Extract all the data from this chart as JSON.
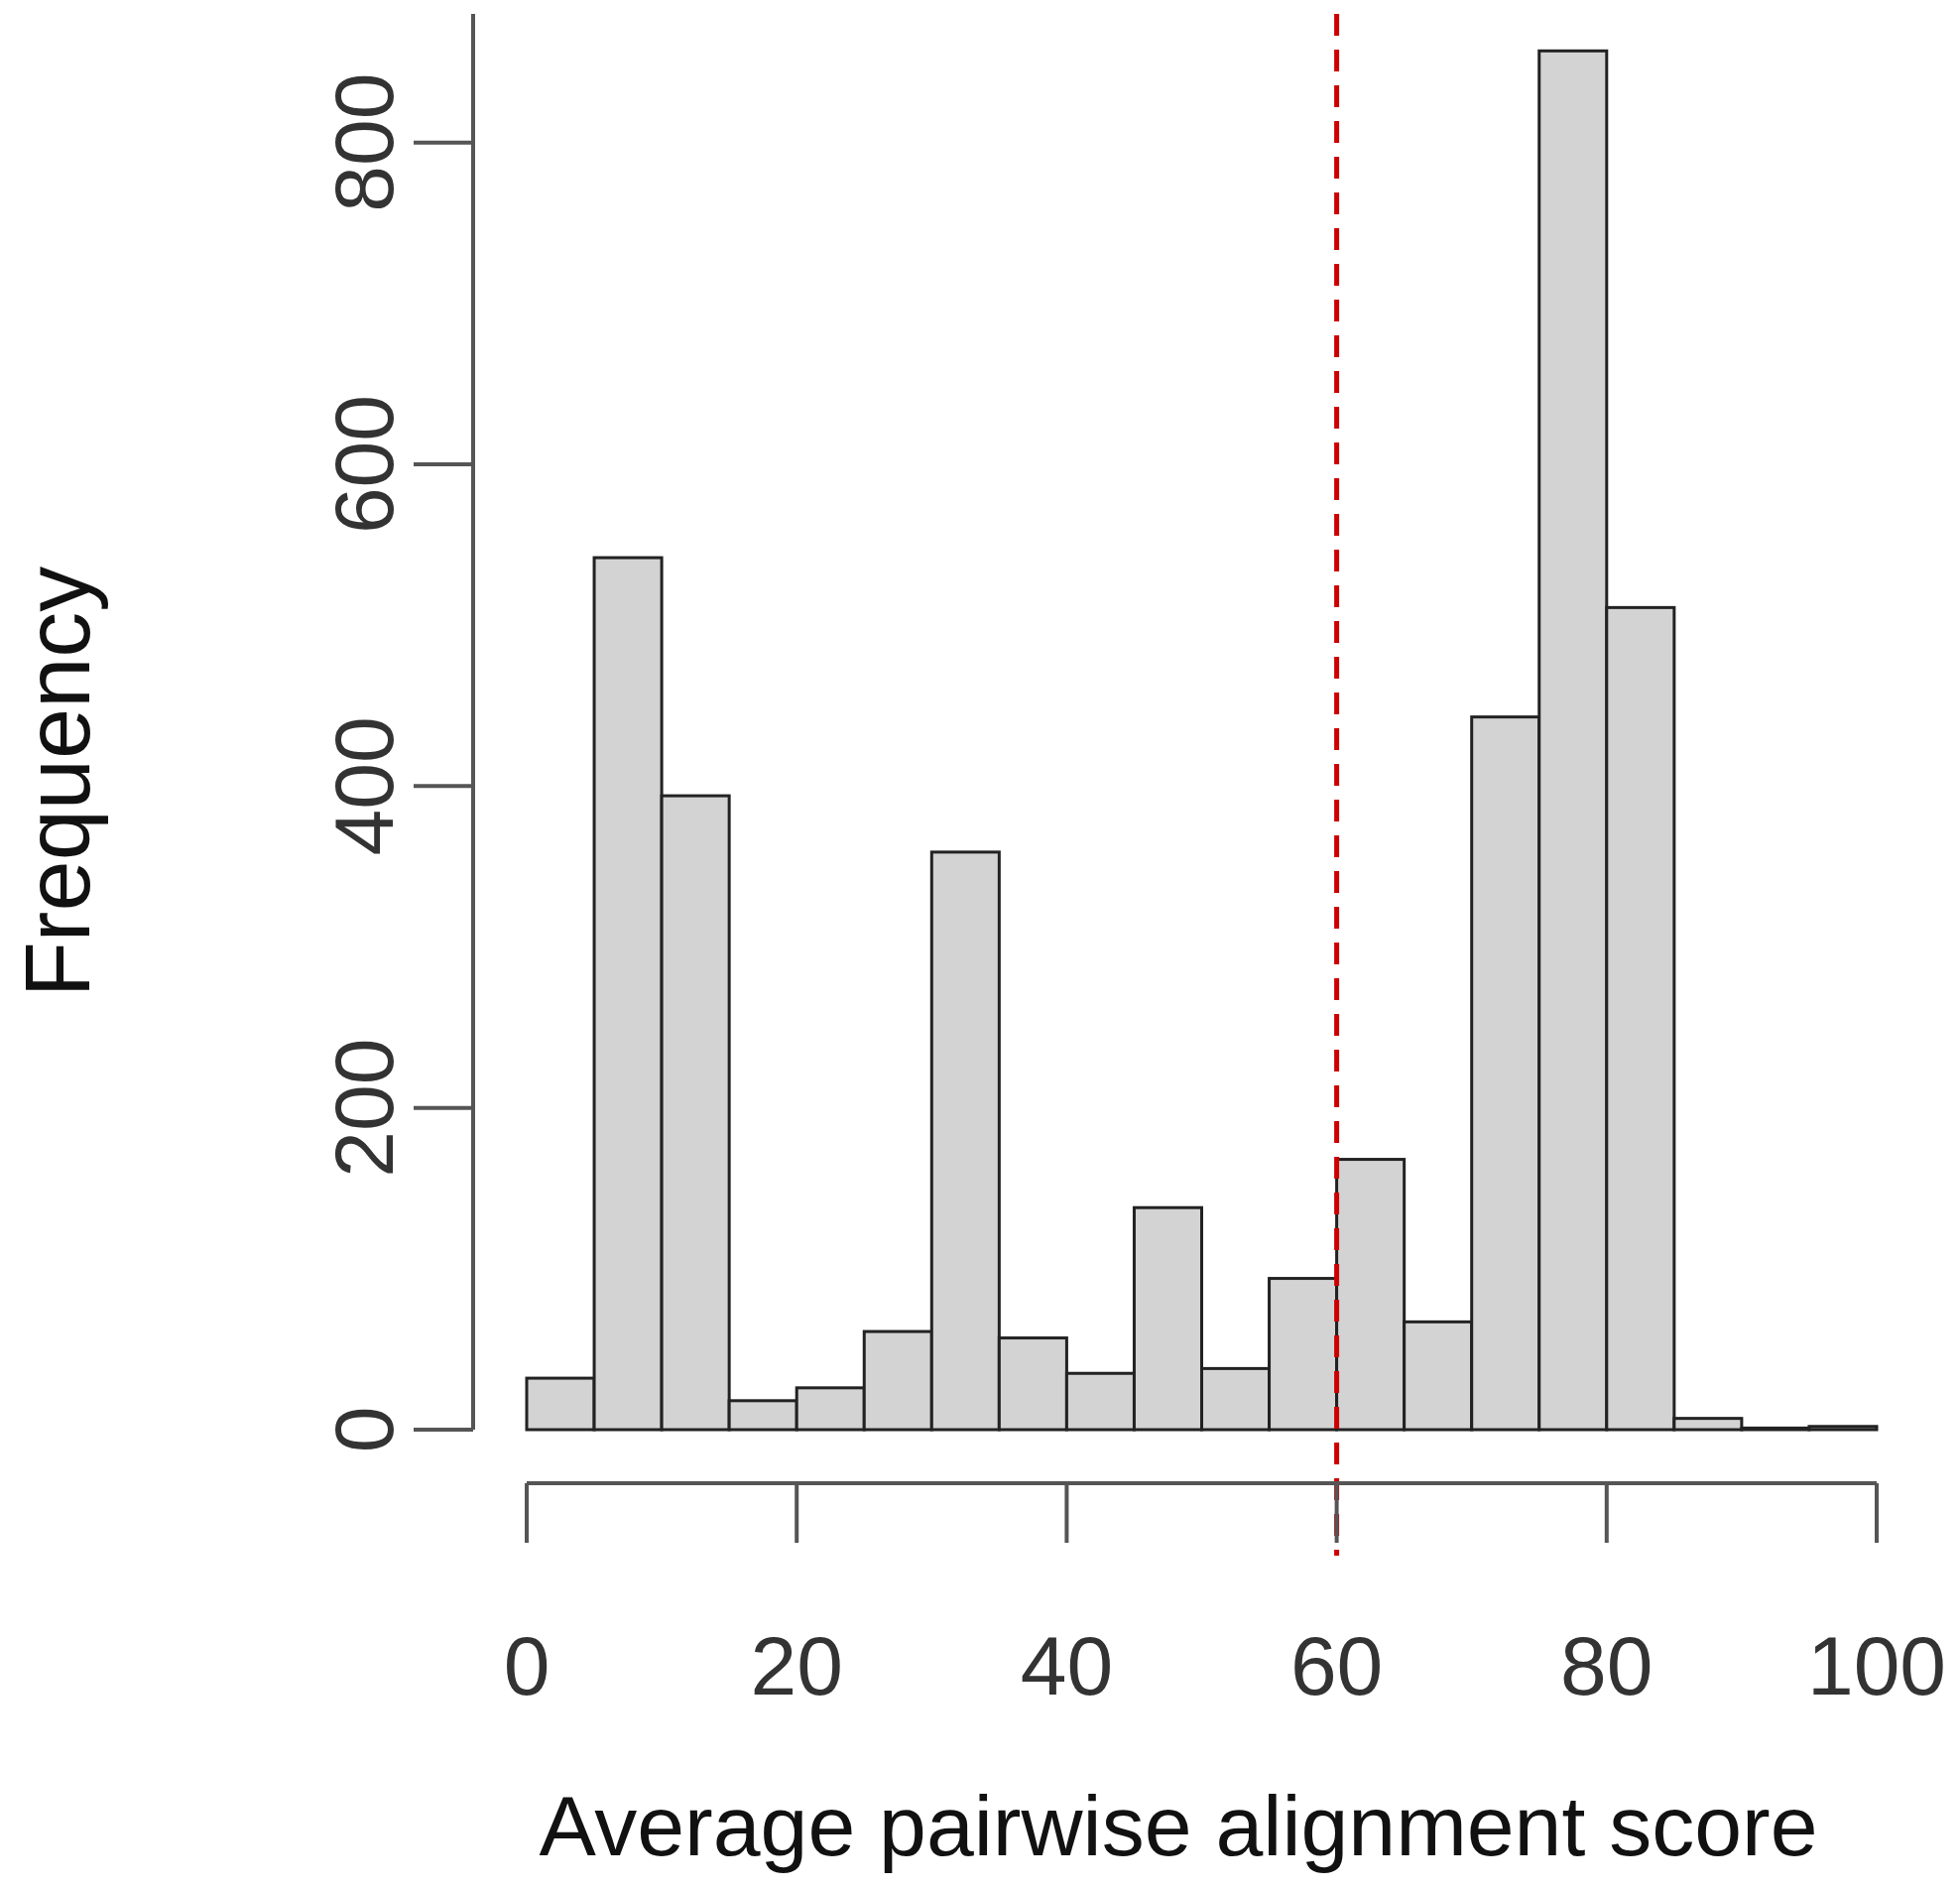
{
  "chart_data": {
    "type": "histogram",
    "xlabel": "Average pairwise alignment score",
    "ylabel": "Frequency",
    "bins": [
      0,
      5,
      10,
      15,
      20,
      25,
      30,
      35,
      40,
      45,
      50,
      55,
      60,
      65,
      70,
      75,
      80,
      85,
      90,
      95,
      100
    ],
    "values": [
      32,
      542,
      394,
      18,
      26,
      61,
      359,
      57,
      35,
      138,
      38,
      94,
      168,
      67,
      443,
      857,
      511,
      7,
      1,
      2
    ],
    "color": "#d3d3d3",
    "xlim": [
      0,
      100
    ],
    "xticks": [
      0,
      20,
      40,
      60,
      80,
      100
    ],
    "ylim": [
      0,
      880
    ],
    "yticks": [
      0,
      200,
      400,
      600,
      800
    ],
    "ref_lines": [
      {
        "axis": "x",
        "value": 60,
        "color": "#cc0000",
        "line_style": "dashed"
      }
    ],
    "grid": false
  }
}
